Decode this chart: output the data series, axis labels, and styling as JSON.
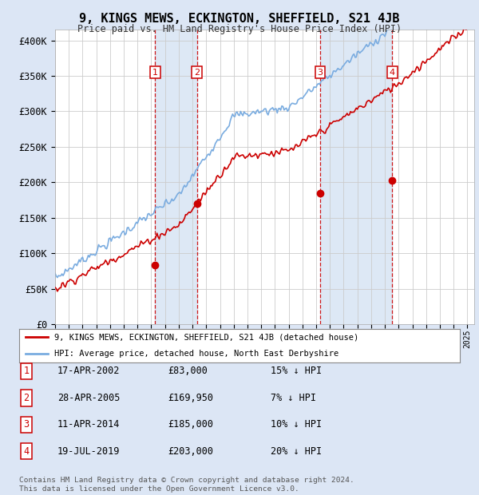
{
  "title": "9, KINGS MEWS, ECKINGTON, SHEFFIELD, S21 4JB",
  "subtitle": "Price paid vs. HM Land Registry's House Price Index (HPI)",
  "ylabel_ticks": [
    "£0",
    "£50K",
    "£100K",
    "£150K",
    "£200K",
    "£250K",
    "£300K",
    "£350K",
    "£400K"
  ],
  "ytick_values": [
    0,
    50000,
    100000,
    150000,
    200000,
    250000,
    300000,
    350000,
    400000
  ],
  "ylim": [
    0,
    415000
  ],
  "xlim_start": 1995.0,
  "xlim_end": 2025.5,
  "sales": [
    {
      "label": "1",
      "date": 2002.29,
      "price": 83000
    },
    {
      "label": "2",
      "date": 2005.32,
      "price": 169950
    },
    {
      "label": "3",
      "date": 2014.28,
      "price": 185000
    },
    {
      "label": "4",
      "date": 2019.54,
      "price": 203000
    }
  ],
  "sale_marker_color": "#cc0000",
  "sale_vline_color": "#cc0000",
  "sale_label_box_color": "#cc0000",
  "hpi_line_color": "#7aace0",
  "price_line_color": "#cc0000",
  "shade_color": "#dde8f5",
  "legend_entries": [
    "9, KINGS MEWS, ECKINGTON, SHEFFIELD, S21 4JB (detached house)",
    "HPI: Average price, detached house, North East Derbyshire"
  ],
  "table_rows": [
    {
      "num": "1",
      "date": "17-APR-2002",
      "price": "£83,000",
      "hpi": "15% ↓ HPI"
    },
    {
      "num": "2",
      "date": "28-APR-2005",
      "price": "£169,950",
      "hpi": "7% ↓ HPI"
    },
    {
      "num": "3",
      "date": "11-APR-2014",
      "price": "£185,000",
      "hpi": "10% ↓ HPI"
    },
    {
      "num": "4",
      "date": "19-JUL-2019",
      "price": "£203,000",
      "hpi": "20% ↓ HPI"
    }
  ],
  "footnote": "Contains HM Land Registry data © Crown copyright and database right 2024.\nThis data is licensed under the Open Government Licence v3.0.",
  "background_color": "#dce6f5",
  "plot_bg_color": "#ffffff",
  "grid_color": "#cccccc"
}
